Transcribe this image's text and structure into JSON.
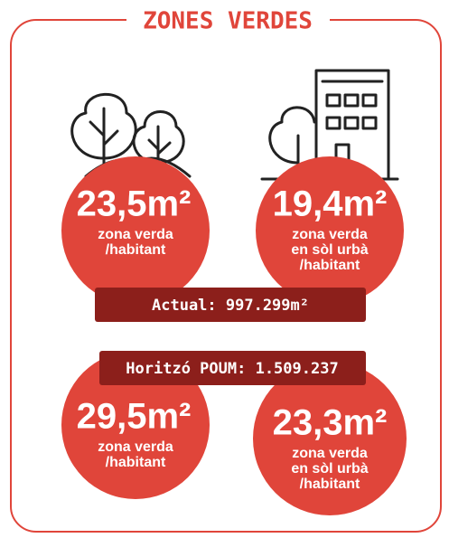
{
  "title": "ZONES VERDES",
  "stats": [
    {
      "value": "23,5m²",
      "lines": [
        "zona verda",
        "/habitant"
      ]
    },
    {
      "value": "19,4m²",
      "lines": [
        "zona verda",
        "en sòl urbà",
        "/habitant"
      ]
    },
    {
      "value": "29,5m²",
      "lines": [
        "zona verda",
        "/habitant"
      ]
    },
    {
      "value": "23,3m²",
      "lines": [
        "zona verda",
        "en sòl urbà",
        "/habitant"
      ]
    }
  ],
  "bars": [
    "Actual: 997.299m²",
    "Horitzó POUM: 1.509.237"
  ]
}
